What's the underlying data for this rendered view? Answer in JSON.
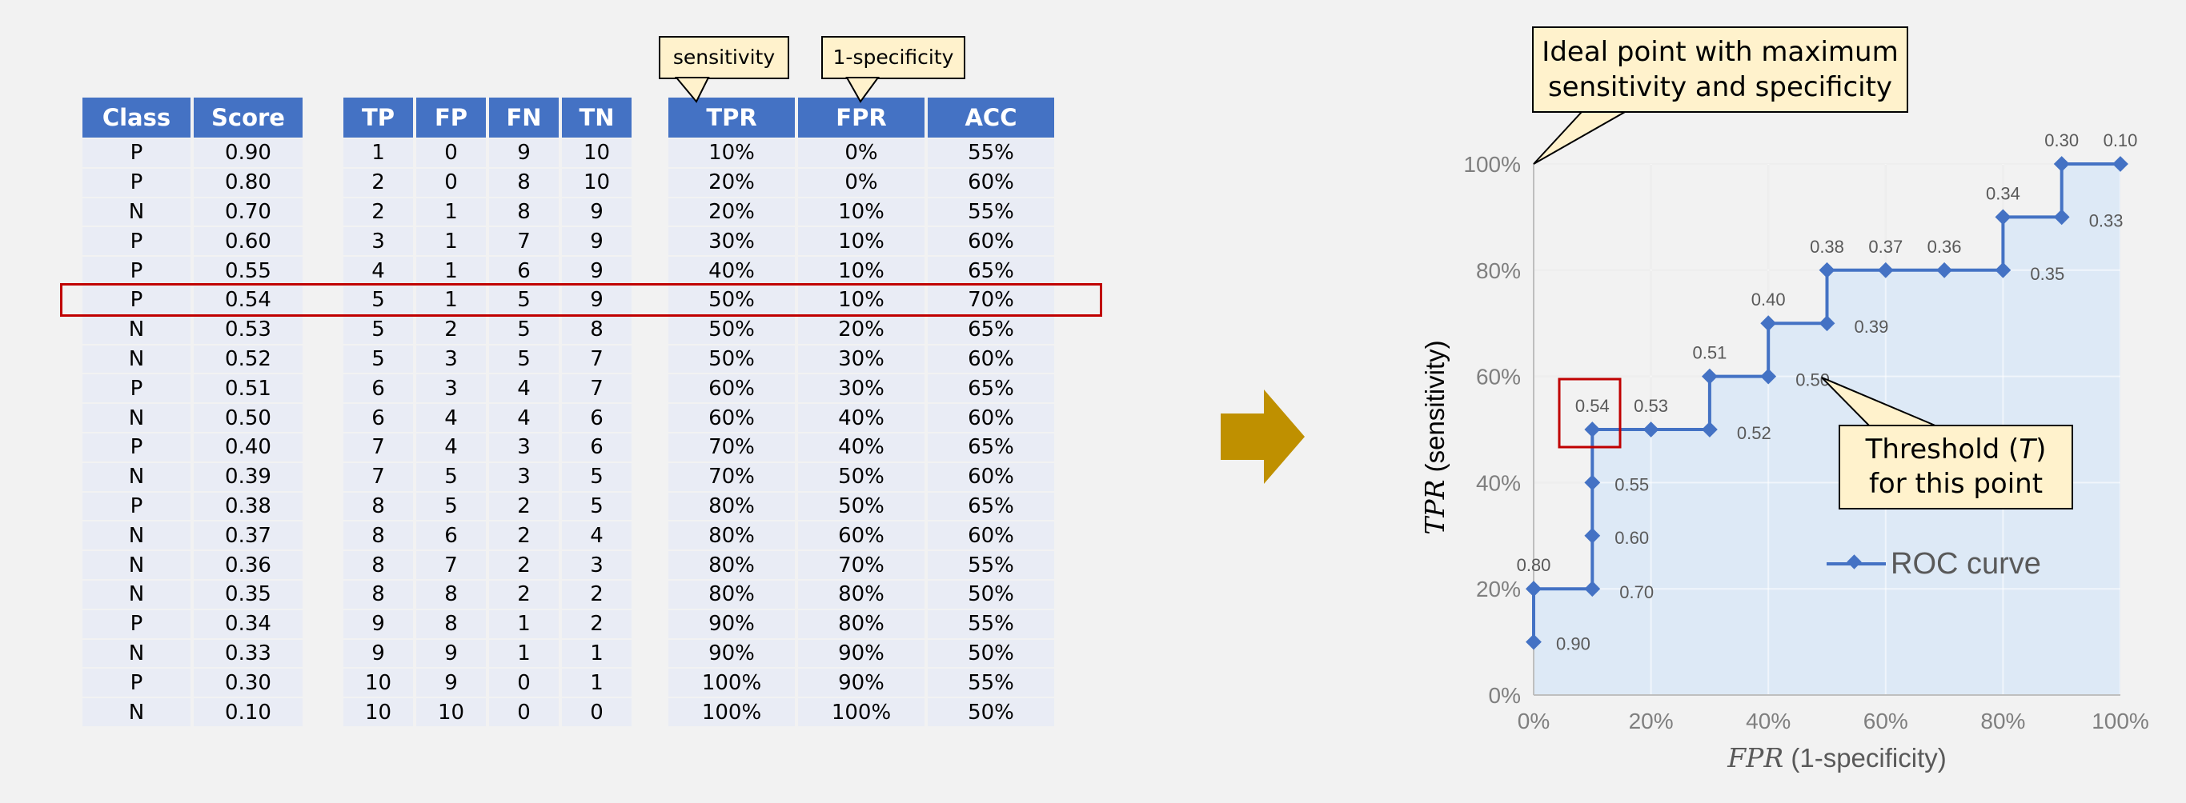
{
  "table": {
    "class_headers": [
      "Class",
      "Score"
    ],
    "count_headers": [
      "TP",
      "FP",
      "FN",
      "TN"
    ],
    "rate_headers": [
      "TPR",
      "FPR",
      "ACC"
    ],
    "rows": [
      [
        "P",
        "0.90",
        "1",
        "0",
        "9",
        "10",
        "10%",
        "0%",
        "55%"
      ],
      [
        "P",
        "0.80",
        "2",
        "0",
        "8",
        "10",
        "20%",
        "0%",
        "60%"
      ],
      [
        "N",
        "0.70",
        "2",
        "1",
        "8",
        "9",
        "20%",
        "10%",
        "55%"
      ],
      [
        "P",
        "0.60",
        "3",
        "1",
        "7",
        "9",
        "30%",
        "10%",
        "60%"
      ],
      [
        "P",
        "0.55",
        "4",
        "1",
        "6",
        "9",
        "40%",
        "10%",
        "65%"
      ],
      [
        "P",
        "0.54",
        "5",
        "1",
        "5",
        "9",
        "50%",
        "10%",
        "70%"
      ],
      [
        "N",
        "0.53",
        "5",
        "2",
        "5",
        "8",
        "50%",
        "20%",
        "65%"
      ],
      [
        "N",
        "0.52",
        "5",
        "3",
        "5",
        "7",
        "50%",
        "30%",
        "60%"
      ],
      [
        "P",
        "0.51",
        "6",
        "3",
        "4",
        "7",
        "60%",
        "30%",
        "65%"
      ],
      [
        "N",
        "0.50",
        "6",
        "4",
        "4",
        "6",
        "60%",
        "40%",
        "60%"
      ],
      [
        "P",
        "0.40",
        "7",
        "4",
        "3",
        "6",
        "70%",
        "40%",
        "65%"
      ],
      [
        "N",
        "0.39",
        "7",
        "5",
        "3",
        "5",
        "70%",
        "50%",
        "60%"
      ],
      [
        "P",
        "0.38",
        "8",
        "5",
        "2",
        "5",
        "80%",
        "50%",
        "65%"
      ],
      [
        "N",
        "0.37",
        "8",
        "6",
        "2",
        "4",
        "80%",
        "60%",
        "60%"
      ],
      [
        "N",
        "0.36",
        "8",
        "7",
        "2",
        "3",
        "80%",
        "70%",
        "55%"
      ],
      [
        "N",
        "0.35",
        "8",
        "8",
        "2",
        "2",
        "80%",
        "80%",
        "50%"
      ],
      [
        "P",
        "0.34",
        "9",
        "8",
        "1",
        "2",
        "90%",
        "80%",
        "55%"
      ],
      [
        "N",
        "0.33",
        "9",
        "9",
        "1",
        "1",
        "90%",
        "90%",
        "50%"
      ],
      [
        "P",
        "0.30",
        "10",
        "9",
        "0",
        "1",
        "100%",
        "90%",
        "55%"
      ],
      [
        "N",
        "0.10",
        "10",
        "10",
        "0",
        "0",
        "100%",
        "100%",
        "50%"
      ]
    ],
    "highlighted_score": "0.54"
  },
  "callouts": {
    "sensitivity": "sensitivity",
    "one_minus_specificity": "1-specificity",
    "ideal_line1": "Ideal point with maximum",
    "ideal_line2": "sensitivity and specificity",
    "threshold_line1_pre": "Threshold (",
    "threshold_var": "T",
    "threshold_line1_post": ")",
    "threshold_line2": "for this point"
  },
  "chart_data": {
    "type": "line",
    "x": [
      0,
      0,
      0,
      10,
      10,
      10,
      10,
      20,
      30,
      30,
      40,
      40,
      50,
      50,
      60,
      70,
      80,
      80,
      90,
      90,
      100
    ],
    "y": [
      10,
      20,
      20,
      20,
      30,
      40,
      50,
      50,
      50,
      60,
      60,
      70,
      70,
      80,
      80,
      80,
      80,
      90,
      90,
      100,
      100
    ],
    "point_labels": [
      "0.90",
      "",
      "0.80",
      "0.70",
      "0.60",
      "0.55",
      "0.54",
      "0.53",
      "0.52",
      "0.51",
      "0.50",
      "0.40",
      "0.39",
      "0.38",
      "0.37",
      "0.36",
      "0.35",
      "0.34",
      "0.33",
      "0.30",
      "0.10"
    ],
    "series": [
      {
        "name": "ROC curve",
        "color": "#4472c4"
      }
    ],
    "xlim": [
      0,
      100
    ],
    "ylim": [
      0,
      100
    ],
    "x_ticks": [
      "0%",
      "20%",
      "40%",
      "60%",
      "80%",
      "100%"
    ],
    "y_ticks": [
      "0%",
      "20%",
      "40%",
      "60%",
      "80%",
      "100%"
    ],
    "xlabel_var": "FPR",
    "xlabel_text": " (1-specificity)",
    "ylabel_var": "TPR",
    "ylabel_text": " (sensitivity)",
    "step": "vertical-then-horizontal",
    "fill_color": "#dde9f6",
    "grid": true,
    "legend": "inside, lower-right",
    "highlighted_point": "0.54"
  },
  "colors": {
    "header_bg": "#4472c4",
    "cell_bg": "#e9ecf5",
    "highlight_border": "#c00000",
    "callout_bg": "#fff2cc",
    "arrow": "#bf9000"
  },
  "icons": {
    "arrow": "right-arrow-icon"
  }
}
